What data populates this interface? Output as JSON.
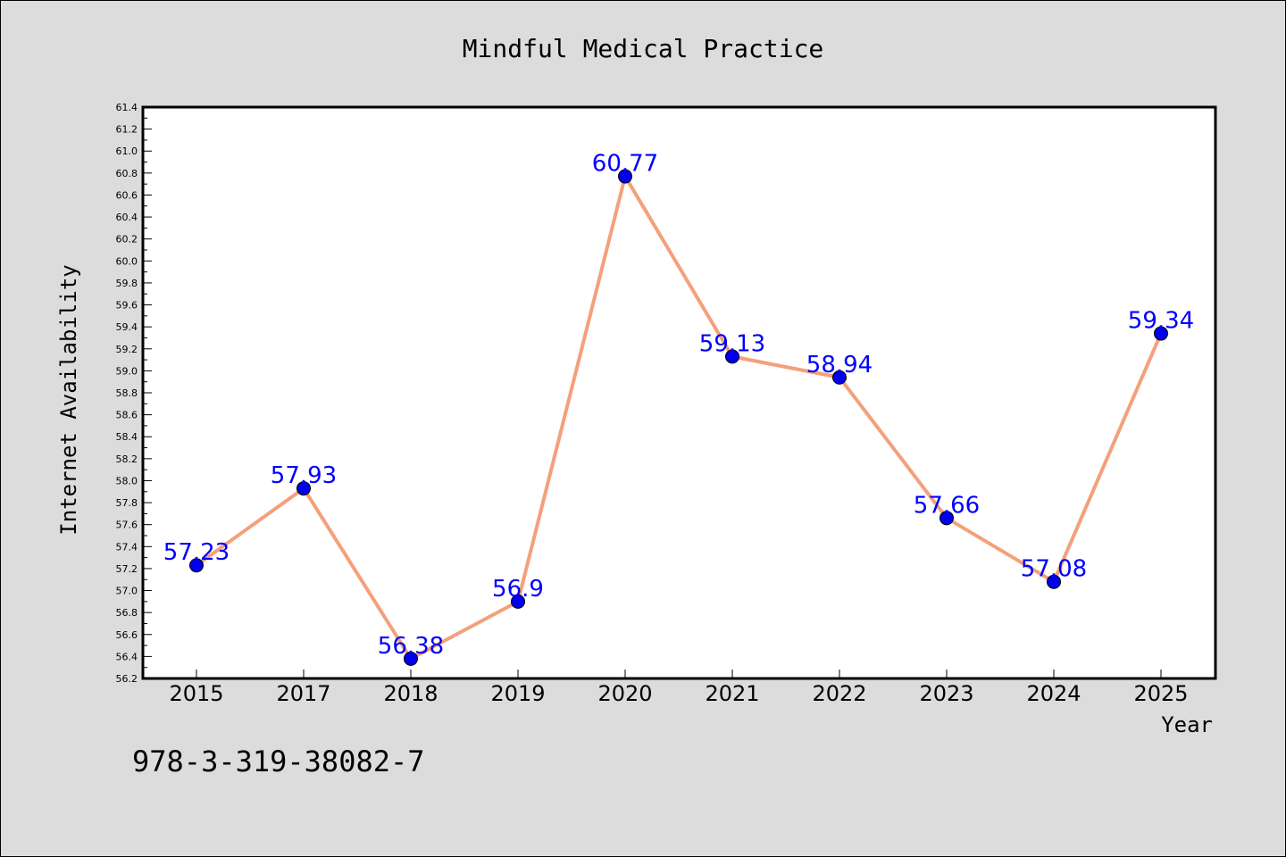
{
  "chart_data": {
    "type": "line",
    "title": "Mindful Medical Practice",
    "xlabel": "Year",
    "ylabel": "Internet Availability",
    "categories": [
      "2015",
      "2017",
      "2018",
      "2019",
      "2020",
      "2021",
      "2022",
      "2023",
      "2024",
      "2025"
    ],
    "values": [
      57.23,
      57.93,
      56.38,
      56.9,
      60.77,
      59.13,
      58.94,
      57.66,
      57.08,
      59.34
    ],
    "data_labels": [
      "57.23",
      "57.93",
      "56.38",
      "56.9",
      "60.77",
      "59.13",
      "58.94",
      "57.66",
      "57.08",
      "59.34"
    ],
    "ylim": [
      56.2,
      61.4
    ],
    "yticks": [
      "56.2",
      "56.4",
      "56.6",
      "56.8",
      "57.0",
      "57.2",
      "57.4",
      "57.6",
      "57.8",
      "58.0",
      "58.2",
      "58.4",
      "58.6",
      "58.8",
      "59.0",
      "59.2",
      "59.4",
      "59.6",
      "59.8",
      "60.0",
      "60.2",
      "60.4",
      "60.6",
      "60.8",
      "61.0",
      "61.2",
      "61.4"
    ],
    "grid": false,
    "legend": "none",
    "line_color": "#f4a07c",
    "marker_color": "#0000ee",
    "label_color": "#0000ff"
  },
  "footer": {
    "isbn": "978-3-319-38082-7"
  }
}
